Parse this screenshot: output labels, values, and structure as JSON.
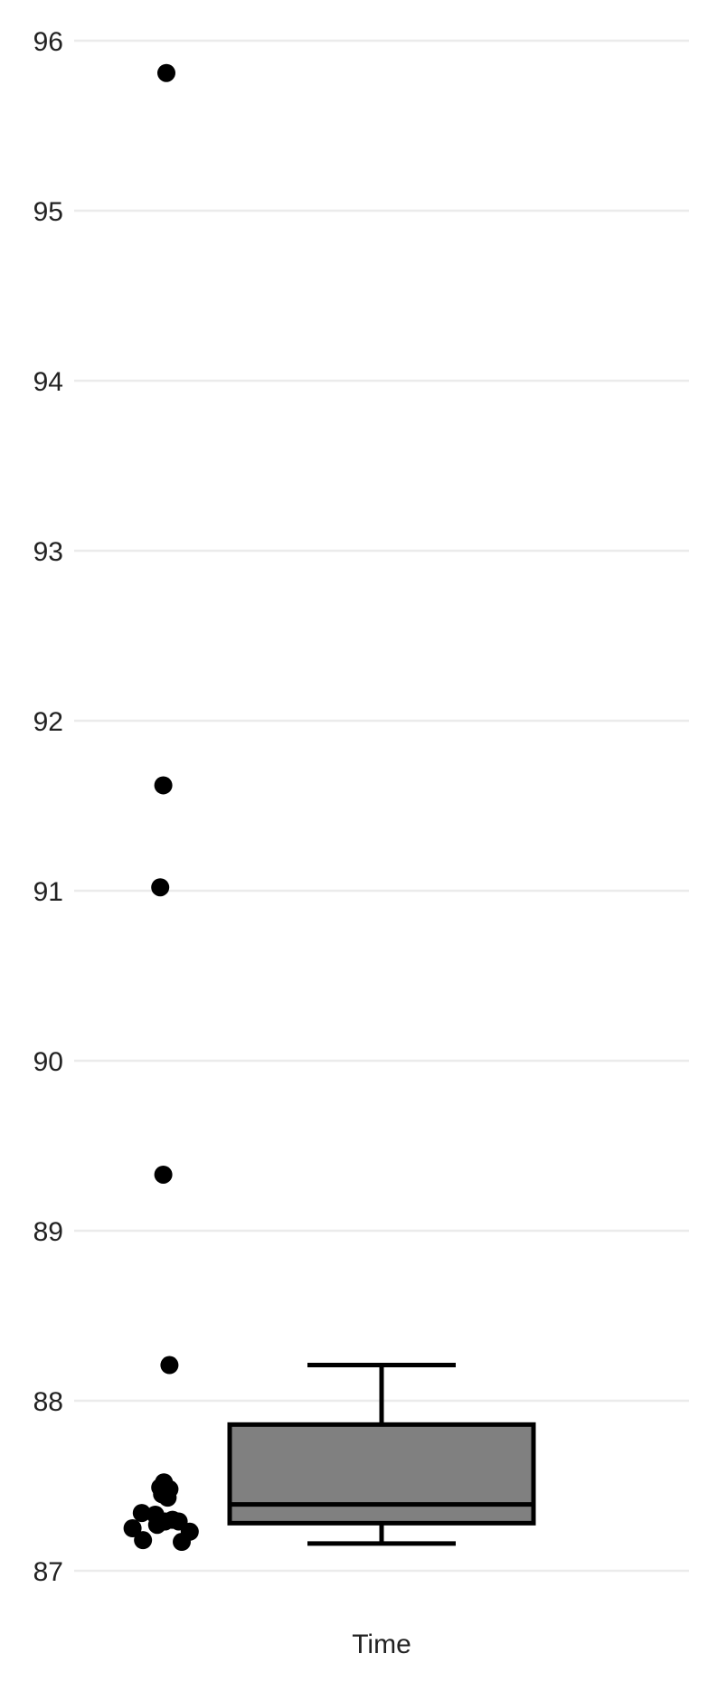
{
  "chart_data": {
    "type": "box",
    "categories": [
      "Time"
    ],
    "y_ticks": [
      87,
      88,
      89,
      90,
      91,
      92,
      93,
      94,
      95,
      96
    ],
    "ylim": [
      87,
      96.15
    ],
    "grid": true,
    "box": {
      "category": "Time",
      "whisker_low": 87.16,
      "q1": 87.28,
      "median": 87.39,
      "q3": 87.86,
      "whisker_high": 88.21,
      "fill": "#808080"
    },
    "points": [
      {
        "x": 0.15,
        "y": 95.81
      },
      {
        "x": 0.145,
        "y": 91.62
      },
      {
        "x": 0.14,
        "y": 91.02
      },
      {
        "x": 0.145,
        "y": 89.33
      },
      {
        "x": 0.155,
        "y": 88.21
      },
      {
        "x": 0.14,
        "y": 87.49
      },
      {
        "x": 0.146,
        "y": 87.52
      },
      {
        "x": 0.155,
        "y": 87.48
      },
      {
        "x": 0.143,
        "y": 87.45
      },
      {
        "x": 0.152,
        "y": 87.43
      },
      {
        "x": 0.11,
        "y": 87.34
      },
      {
        "x": 0.132,
        "y": 87.33
      },
      {
        "x": 0.16,
        "y": 87.3
      },
      {
        "x": 0.148,
        "y": 87.29
      },
      {
        "x": 0.17,
        "y": 87.29
      },
      {
        "x": 0.135,
        "y": 87.27
      },
      {
        "x": 0.095,
        "y": 87.25
      },
      {
        "x": 0.188,
        "y": 87.23
      },
      {
        "x": 0.112,
        "y": 87.18
      },
      {
        "x": 0.175,
        "y": 87.17
      }
    ],
    "point_color": "#000000",
    "grid_color": "#ebebeb"
  }
}
